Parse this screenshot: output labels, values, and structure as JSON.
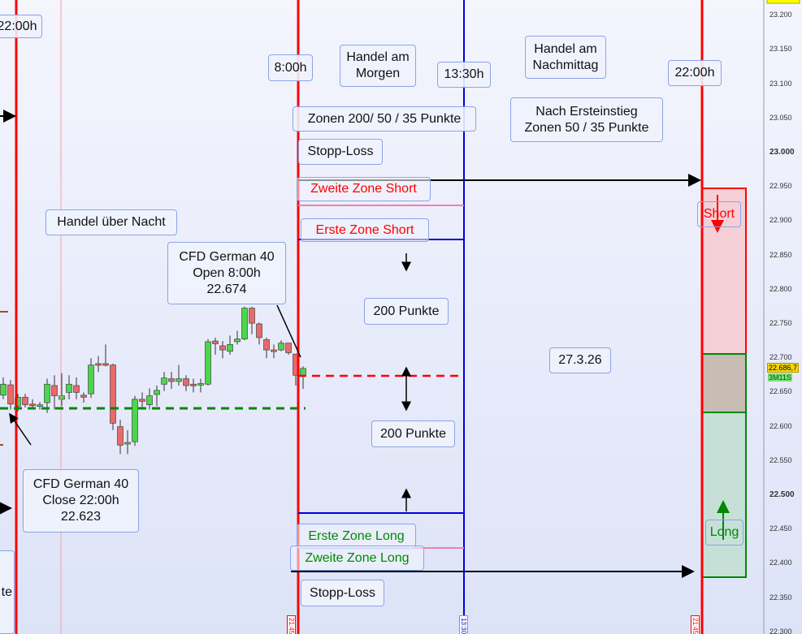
{
  "chart_data": {
    "type": "candlestick",
    "instrument": "CFD German 40",
    "y_axis": {
      "range": [
        22300,
        23200
      ],
      "ticks": [
        "23.200",
        "23.150",
        "23.100",
        "23.050",
        "23.000",
        "22.950",
        "22.900",
        "22.850",
        "22.800",
        "22.750",
        "22.700",
        "22.650",
        "22.600",
        "22.550",
        "22.500",
        "22.450",
        "22.400",
        "22.350",
        "22.300"
      ],
      "bold_ticks": [
        "23.000",
        "22.500"
      ]
    },
    "current_price": "22.686,7",
    "countdown": "3M11S",
    "candles": [
      [
        22646,
        22672,
        22640,
        22662
      ],
      [
        22661,
        22668,
        22625,
        22633
      ],
      [
        22630,
        22648,
        22622,
        22643
      ],
      [
        22643,
        22648,
        22628,
        22632
      ],
      [
        22633,
        22640,
        22625,
        22631
      ],
      [
        22630,
        22636,
        22625,
        22632
      ],
      [
        22635,
        22670,
        22620,
        22662
      ],
      [
        22660,
        22675,
        22625,
        22645
      ],
      [
        22640,
        22678,
        22630,
        22645
      ],
      [
        22650,
        22675,
        22640,
        22662
      ],
      [
        22660,
        22672,
        22640,
        22650
      ],
      [
        22646,
        22650,
        22635,
        22643
      ],
      [
        22648,
        22700,
        22642,
        22690
      ],
      [
        22692,
        22703,
        22680,
        22690
      ],
      [
        22692,
        22720,
        22688,
        22690
      ],
      [
        22690,
        22692,
        22595,
        22605
      ],
      [
        22600,
        22610,
        22560,
        22573
      ],
      [
        22575,
        22595,
        22560,
        22577
      ],
      [
        22578,
        22645,
        22572,
        22640
      ],
      [
        22640,
        22650,
        22625,
        22637
      ],
      [
        22632,
        22656,
        22625,
        22645
      ],
      [
        22647,
        22660,
        22630,
        22653
      ],
      [
        22662,
        22680,
        22652,
        22671
      ],
      [
        22670,
        22680,
        22655,
        22666
      ],
      [
        22666,
        22690,
        22660,
        22670
      ],
      [
        22670,
        22675,
        22652,
        22660
      ],
      [
        22662,
        22670,
        22650,
        22661
      ],
      [
        22661,
        22670,
        22650,
        22663
      ],
      [
        22662,
        22728,
        22660,
        22724
      ],
      [
        22725,
        22730,
        22705,
        22721
      ],
      [
        22718,
        22725,
        22700,
        22712
      ],
      [
        22710,
        22733,
        22705,
        22720
      ],
      [
        22724,
        22740,
        22720,
        22728
      ],
      [
        22728,
        22775,
        22726,
        22773
      ],
      [
        22773,
        22775,
        22735,
        22751
      ],
      [
        22750,
        22752,
        22720,
        22730
      ],
      [
        22727,
        22730,
        22700,
        22712
      ],
      [
        22712,
        22720,
        22700,
        22711
      ],
      [
        22712,
        22726,
        22710,
        22722
      ],
      [
        22722,
        22722,
        22705,
        22708
      ],
      [
        22706,
        22706,
        22660,
        22675
      ],
      [
        22675,
        22688,
        22655,
        22685
      ]
    ],
    "levels": {
      "close_prev": 22623,
      "open": 22674,
      "zone_short_1": 22874,
      "zone_short_2": 22924,
      "zone_long_1": 22474,
      "zone_long_2": 22424
    },
    "vertical_lines": [
      "22:00h",
      "8:00h",
      "13:30h",
      "22:00h"
    ],
    "time_labels": [
      "21:45",
      "13:30",
      "21:45"
    ],
    "colors": {
      "up": "#4cd64c",
      "down": "#e86a6a",
      "session": "#ff0000",
      "midday": "#0000dd",
      "short_zone": "#f4cfd6",
      "long_zone": "#c6e0d8",
      "neutral_zone": "#c8bcb4"
    }
  },
  "labels": {
    "t2200_left": "22:00h",
    "t800": "8:00h",
    "morning": "Handel am\nMorgen",
    "t1330": "13:30h",
    "afternoon": "Handel am\nNachmittag",
    "t2200_right": "22:00h",
    "zones": "Zonen 200/ 50 / 35 Punkte",
    "after_entry": "Nach Ersteinstieg\nZonen 50 / 35 Punkte",
    "stop_top": "Stopp-Loss",
    "short2": "Zweite Zone Short",
    "short1": "Erste Zone Short",
    "overnight": "Handel über Nacht",
    "open_info": "CFD German 40\nOpen 8:00h\n22.674",
    "pts_top": "200 Punkte",
    "date": "27.3.26",
    "pts_bottom": "200 Punkte",
    "close_info": "CFD German 40\nClose 22:00h\n22.623",
    "long1": "Erste Zone Long",
    "long2": "Zweite Zone Long",
    "stop_bottom": "Stopp-Loss",
    "short": "Short",
    "long": "Long",
    "left_partial": "te"
  }
}
